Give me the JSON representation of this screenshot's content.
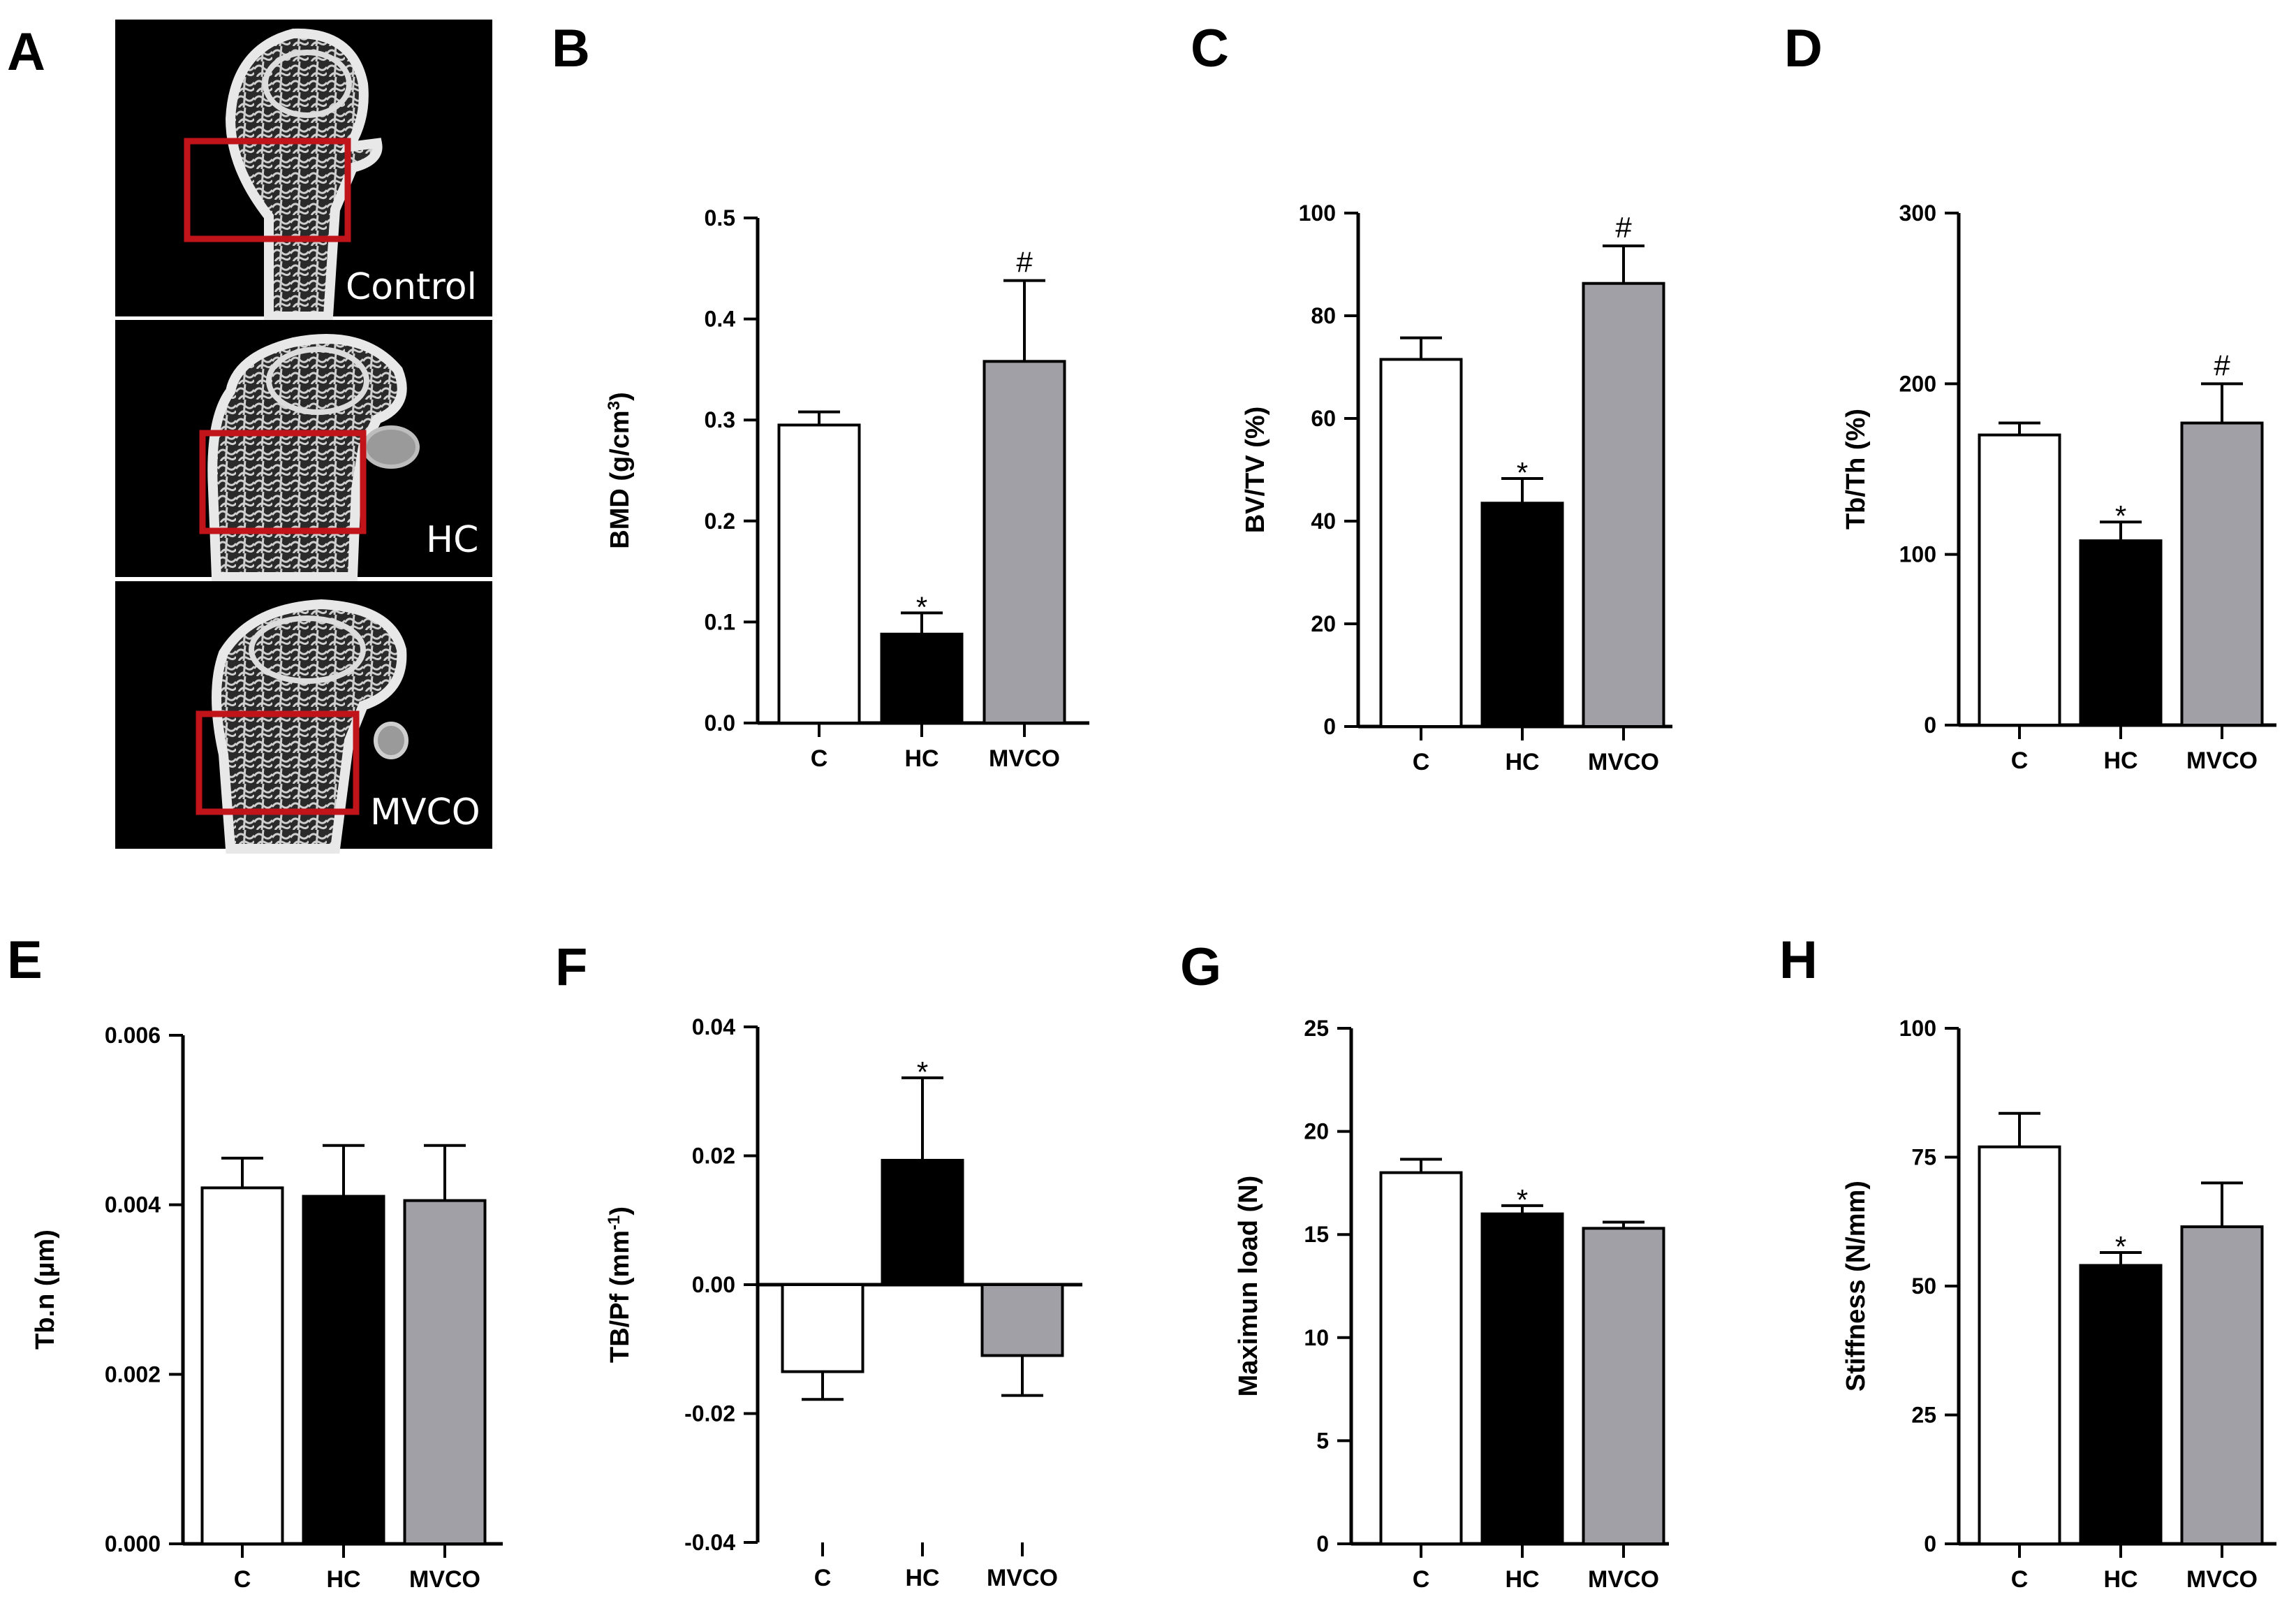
{
  "colors": {
    "C": "#ffffff",
    "HC": "#000000",
    "MVCO": "#a0a0a6",
    "roi": "#c0141a"
  },
  "panel_a": {
    "letter": "A",
    "images": [
      {
        "label": "Control",
        "icon": "femur-microct-image"
      },
      {
        "label": "HC",
        "icon": "femur-microct-image"
      },
      {
        "label": "MVCO",
        "icon": "femur-microct-image"
      }
    ]
  },
  "chart_data": [
    {
      "id": "B",
      "type": "bar",
      "ylabel": "BMD (g/cm",
      "ylabel_sup": "3",
      "ylabel_end": ")",
      "categories": [
        "C",
        "HC",
        "MVCO"
      ],
      "values": [
        0.295,
        0.088,
        0.358
      ],
      "errors": [
        0.013,
        0.021,
        0.08
      ],
      "marks": [
        "",
        "*",
        "#"
      ],
      "ylim": [
        0,
        0.5
      ],
      "ticks": [
        "0.0",
        "0.1",
        "0.2",
        "0.3",
        "0.4",
        "0.5"
      ],
      "tick_values": [
        0,
        0.1,
        0.2,
        0.3,
        0.4,
        0.5
      ]
    },
    {
      "id": "C",
      "type": "bar",
      "ylabel": "BV/TV (%)",
      "categories": [
        "C",
        "HC",
        "MVCO"
      ],
      "values": [
        71.5,
        43.5,
        86.3
      ],
      "errors": [
        4.2,
        4.8,
        7.3
      ],
      "marks": [
        "",
        "*",
        "#"
      ],
      "ylim": [
        0,
        100
      ],
      "ticks": [
        "0",
        "20",
        "40",
        "60",
        "80",
        "100"
      ],
      "tick_values": [
        0,
        20,
        40,
        60,
        80,
        100
      ]
    },
    {
      "id": "D",
      "type": "bar",
      "ylabel": "Tb/Th (%)",
      "categories": [
        "C",
        "HC",
        "MVCO"
      ],
      "values": [
        170,
        108,
        177
      ],
      "errors": [
        7,
        11,
        23
      ],
      "marks": [
        "",
        "*",
        "#"
      ],
      "ylim": [
        0,
        300
      ],
      "ticks": [
        "0",
        "100",
        "200",
        "300"
      ],
      "tick_values": [
        0,
        100,
        200,
        300
      ]
    },
    {
      "id": "E",
      "type": "bar",
      "ylabel": "Tb.n (µm)",
      "categories": [
        "C",
        "HC",
        "MVCO"
      ],
      "values": [
        0.0042,
        0.0041,
        0.00405
      ],
      "errors": [
        0.00035,
        0.0006,
        0.00065
      ],
      "marks": [
        "",
        "",
        ""
      ],
      "ylim": [
        0,
        0.006
      ],
      "ticks": [
        "0.000",
        "0.002",
        "0.004",
        "0.006"
      ],
      "tick_values": [
        0,
        0.002,
        0.004,
        0.006
      ]
    },
    {
      "id": "F",
      "type": "bar",
      "ylabel": "TB/Pf (mm",
      "ylabel_sup": "-1",
      "ylabel_end": ")",
      "categories": [
        "C",
        "HC",
        "MVCO"
      ],
      "values": [
        -0.0135,
        0.0193,
        -0.011
      ],
      "errors": [
        0.0043,
        0.0128,
        0.0062
      ],
      "marks": [
        "",
        "*",
        ""
      ],
      "ylim": [
        -0.04,
        0.04
      ],
      "ticks": [
        "-0.04",
        "-0.02",
        "0.00",
        "0.02",
        "0.04"
      ],
      "tick_values": [
        -0.04,
        -0.02,
        0,
        0.02,
        0.04
      ]
    },
    {
      "id": "G",
      "type": "bar",
      "ylabel": "Maximun load (N)",
      "categories": [
        "C",
        "HC",
        "MVCO"
      ],
      "values": [
        18.0,
        16.0,
        15.3
      ],
      "errors": [
        0.65,
        0.4,
        0.3
      ],
      "marks": [
        "",
        "*",
        ""
      ],
      "ylim": [
        0,
        25
      ],
      "ticks": [
        "0",
        "5",
        "10",
        "15",
        "20",
        "25"
      ],
      "tick_values": [
        0,
        5,
        10,
        15,
        20,
        25
      ]
    },
    {
      "id": "H",
      "type": "bar",
      "ylabel": "Stiffness (N/mm)",
      "categories": [
        "C",
        "HC",
        "MVCO"
      ],
      "values": [
        77,
        54,
        61.5
      ],
      "errors": [
        6.5,
        2.5,
        8.5
      ],
      "marks": [
        "",
        "*",
        ""
      ],
      "ylim": [
        0,
        100
      ],
      "ticks": [
        "0",
        "25",
        "50",
        "75",
        "100"
      ],
      "tick_values": [
        0,
        25,
        50,
        75,
        100
      ]
    }
  ]
}
